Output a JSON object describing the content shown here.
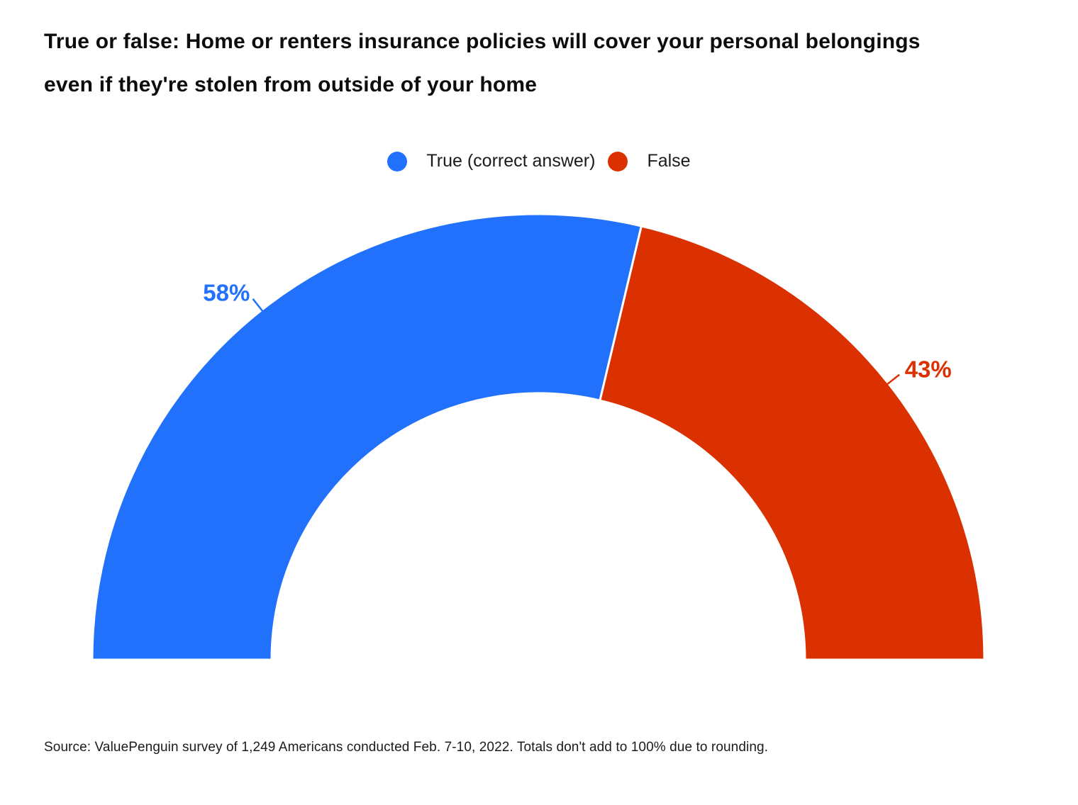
{
  "header": {
    "title_lines": [
      "True or false: Home or renters insurance policies will cover your personal belongings",
      "even if they're stolen from outside of your home"
    ]
  },
  "legend": {
    "items": [
      {
        "label": "True (correct answer)",
        "color": "#2171FC"
      },
      {
        "label": "False",
        "color": "#DB3000"
      }
    ]
  },
  "chart_data": {
    "type": "pie",
    "variant": "half-donut",
    "title": "True or false: Home or renters insurance policies will cover your personal belongings even if they're stolen from outside of your home",
    "categories": [
      "True (correct answer)",
      "False"
    ],
    "series": [
      {
        "name": "True (correct answer)",
        "value": 58,
        "percent_label": "58%",
        "color": "#2171FC"
      },
      {
        "name": "False",
        "value": 43,
        "percent_label": "43%",
        "color": "#DB3000"
      }
    ],
    "start_angle_deg": 180,
    "end_angle_deg": 0,
    "legend_position": "top-center",
    "background": "#FFFFFF"
  },
  "footer": {
    "source": "Source: ValuePenguin survey of 1,249 Americans conducted Feb. 7-10, 2022. Totals don't add to 100% due to rounding."
  }
}
